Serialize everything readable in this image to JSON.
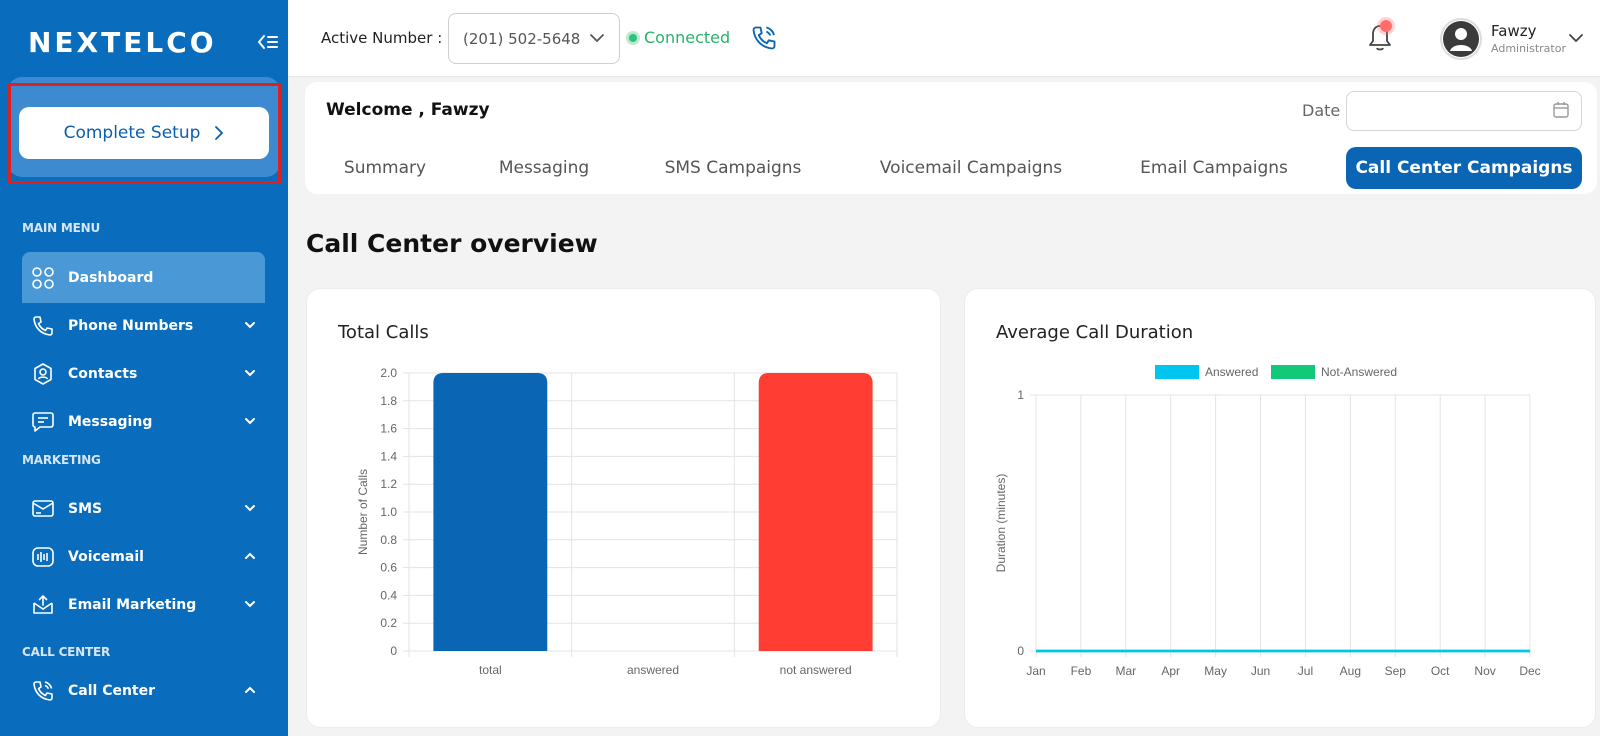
{
  "sidebar": {
    "logo": "NEXTELCO",
    "setup_button": "Complete Setup",
    "sections": {
      "main_menu": "MAIN MENU",
      "marketing": "MARKETING",
      "call_center": "CALL CENTER"
    },
    "items": [
      {
        "label": "Dashboard",
        "icon": "grid-icon",
        "chevron": "none"
      },
      {
        "label": "Phone Numbers",
        "icon": "phone-icon",
        "chevron": "down"
      },
      {
        "label": "Contacts",
        "icon": "contact-icon",
        "chevron": "down"
      },
      {
        "label": "Messaging",
        "icon": "message-icon",
        "chevron": "down"
      },
      {
        "label": "SMS",
        "icon": "sms-icon",
        "chevron": "down"
      },
      {
        "label": "Voicemail",
        "icon": "voicemail-icon",
        "chevron": "up"
      },
      {
        "label": "Email Marketing",
        "icon": "email-icon",
        "chevron": "down"
      },
      {
        "label": "Call Center",
        "icon": "call-center-icon",
        "chevron": "up"
      }
    ]
  },
  "header": {
    "active_number_label": "Active Number :",
    "active_number": "(201) 502-5648",
    "status": "Connected",
    "user_name": "Fawzy",
    "user_role": "Administrator"
  },
  "welcome": {
    "text": "Welcome , Fawzy",
    "date_label": "Date",
    "date_value": ""
  },
  "tabs": [
    "Summary",
    "Messaging",
    "SMS Campaigns",
    "Voicemail Campaigns",
    "Email Campaigns",
    "Call Center Campaigns"
  ],
  "active_tab": "Call Center Campaigns",
  "page": {
    "section_title": "Call Center overview"
  },
  "colors": {
    "sidebar": "#0a6cbc",
    "accent": "#0a65b4",
    "connected": "#27b36a",
    "bar_total": "#0a65b4",
    "bar_not_answered": "#ff3d33",
    "answered": "#00c5ef",
    "not_answered": "#12c97a"
  },
  "chart_data": [
    {
      "type": "bar",
      "title": "Total Calls",
      "ylabel": "Number of Calls",
      "xlabel": "",
      "categories": [
        "total",
        "answered",
        "not answered"
      ],
      "values": [
        2,
        0,
        2
      ],
      "ylim": [
        0,
        2
      ],
      "yticks": [
        "0",
        "0.2",
        "0.4",
        "0.6",
        "0.8",
        "1.0",
        "1.2",
        "1.4",
        "1.6",
        "1.8",
        "2.0"
      ],
      "grid": true
    },
    {
      "type": "line",
      "title": "Average Call Duration",
      "ylabel": "Duration (minutes)",
      "xlabel": "",
      "x": [
        "Jan",
        "Feb",
        "Mar",
        "Apr",
        "May",
        "Jun",
        "Jul",
        "Aug",
        "Sep",
        "Oct",
        "Nov",
        "Dec"
      ],
      "series": [
        {
          "name": "Answered",
          "values": [
            0,
            0,
            0,
            0,
            0,
            0,
            0,
            0,
            0,
            0,
            0,
            0
          ]
        },
        {
          "name": "Not-Answered",
          "values": [
            0,
            0,
            0,
            0,
            0,
            0,
            0,
            0,
            0,
            0,
            0,
            0
          ]
        }
      ],
      "ylim": [
        0,
        1
      ],
      "yticks": [
        "0",
        "1"
      ],
      "legend": "top",
      "grid": true
    }
  ]
}
